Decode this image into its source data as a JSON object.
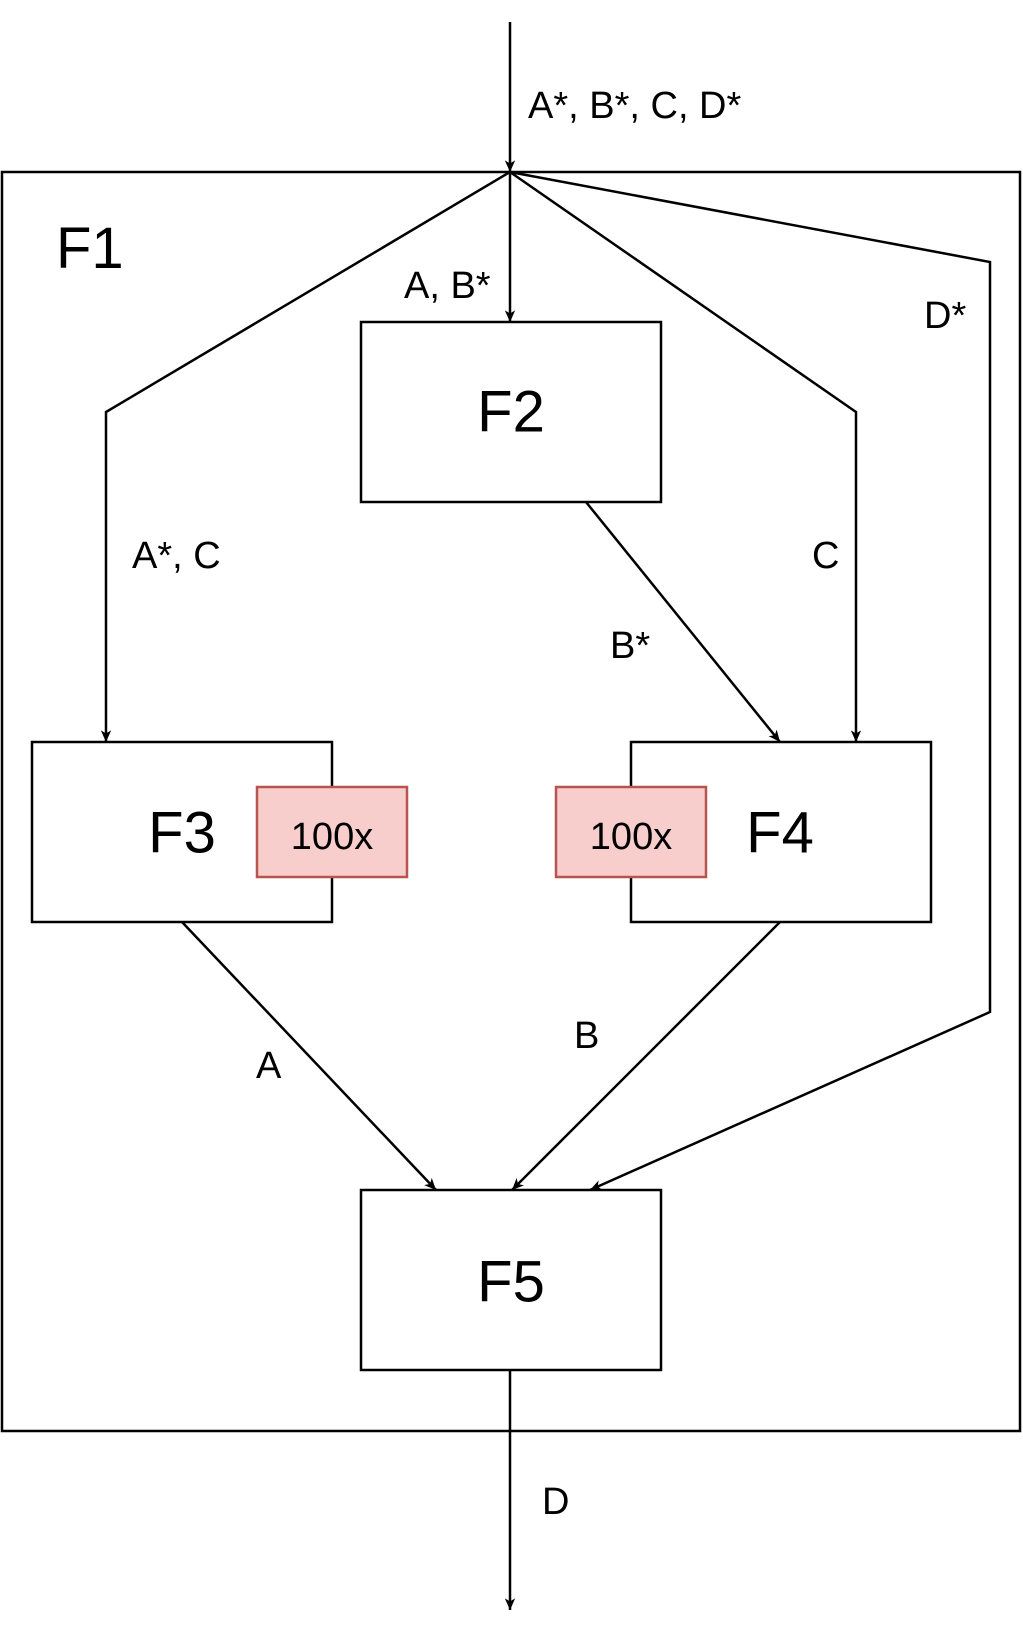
{
  "diagram": {
    "outer": {
      "title": "F1"
    },
    "nodes": {
      "f2": {
        "title": "F2"
      },
      "f3": {
        "title": "F3",
        "badge": "100x"
      },
      "f4": {
        "title": "F4",
        "badge": "100x"
      },
      "f5": {
        "title": "F5"
      }
    },
    "edges": {
      "input": "A*, B*, C, D*",
      "to_f2": "A, B*",
      "to_f3": "A*, C",
      "f2_to_f4": "B*",
      "to_f4": "C",
      "bypass_to_f5": "D*",
      "f3_to_f5": "A",
      "f4_to_f5": "B",
      "output": "D"
    },
    "colors": {
      "badge_fill": "#f8cecc",
      "badge_stroke": "#b85450",
      "line": "#000000"
    }
  }
}
